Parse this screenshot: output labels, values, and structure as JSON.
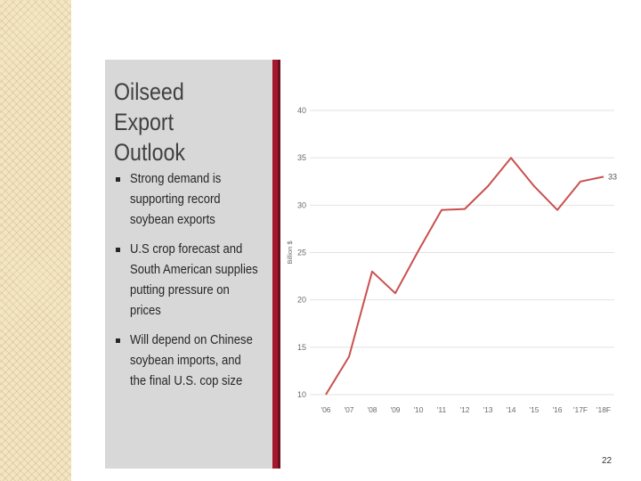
{
  "slide": {
    "title_line1": "Oilseed Export",
    "title_line2": "Outlook",
    "bullets": [
      {
        "l1": "Strong demand is",
        "l2": "supporting record",
        "l3": "soybean exports"
      },
      {
        "l1": "U.S crop forecast and",
        "l2": "South American supplies",
        "l3": "putting pressure on",
        "l4": "prices"
      },
      {
        "l1": "Will depend on Chinese",
        "l2": "soybean imports, and",
        "l3": "the final U.S. cop size"
      }
    ],
    "page_number": "22"
  },
  "colors": {
    "accent": "#a3182e",
    "line": "#c9504f",
    "panel": "#d8d8d8"
  },
  "chart_data": {
    "type": "line",
    "categories": [
      "'06",
      "'07",
      "'08",
      "'09",
      "'10",
      "'11",
      "'12",
      "'13",
      "'14",
      "'15",
      "'16",
      "'17F",
      "'18F"
    ],
    "series": [
      {
        "values": [
          10,
          14,
          23,
          20.7,
          25.2,
          29.5,
          29.6,
          32,
          35,
          32,
          29.5,
          32.5,
          33
        ]
      }
    ],
    "ylabel": "Billion $",
    "ylim": [
      10,
      40
    ],
    "yticks": [
      "10",
      "15",
      "20",
      "25",
      "30",
      "35",
      "40"
    ],
    "end_label": "33",
    "grid": true
  }
}
